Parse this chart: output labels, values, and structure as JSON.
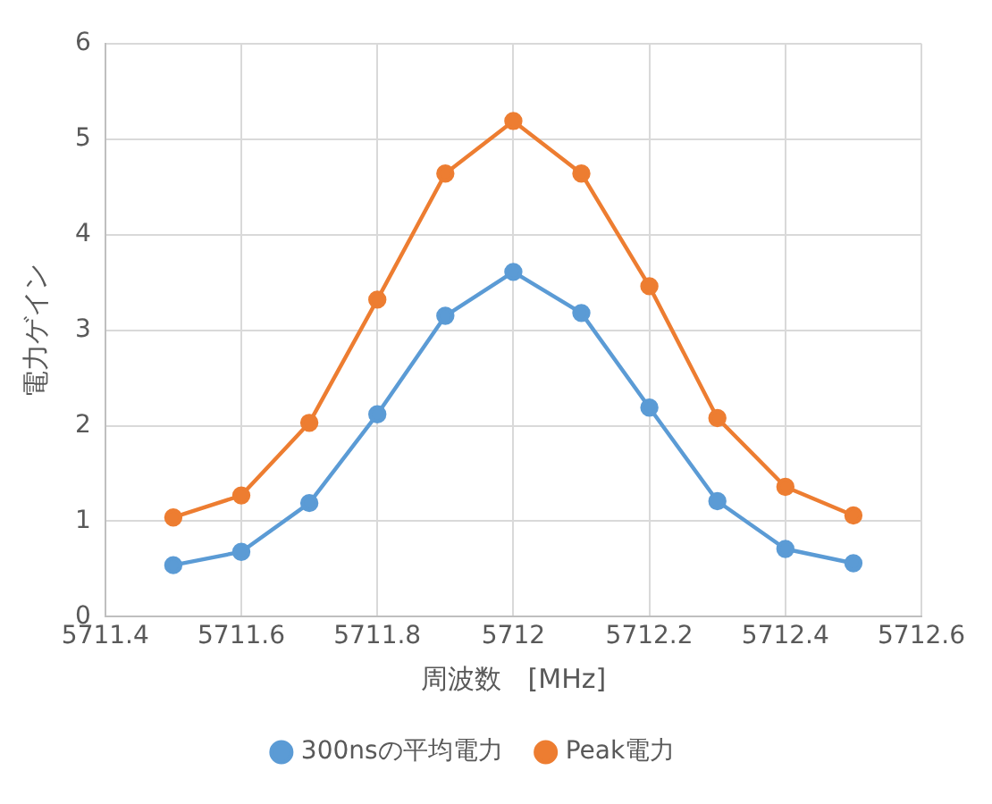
{
  "chart_data": {
    "type": "line",
    "xlabel": "周波数　[MHz]",
    "ylabel": "電力ゲイン",
    "x": [
      5711.5,
      5711.6,
      5711.7,
      5711.8,
      5711.9,
      5712,
      5712.1,
      5712.2,
      5712.3,
      5712.4,
      5712.5
    ],
    "series": [
      {
        "name": "300nsの平均電力",
        "color": "#5b9bd5",
        "values": [
          0.54,
          0.68,
          1.19,
          2.12,
          3.15,
          3.61,
          3.18,
          2.19,
          1.21,
          0.71,
          0.56
        ]
      },
      {
        "name": "Peak電力",
        "color": "#ed7d31",
        "values": [
          1.04,
          1.27,
          2.03,
          3.32,
          4.64,
          5.19,
          4.64,
          3.46,
          2.08,
          1.36,
          1.06
        ]
      }
    ],
    "xlim": [
      5711.4,
      5712.6
    ],
    "xticks": [
      5711.4,
      5711.6,
      5711.8,
      5712,
      5712.2,
      5712.4,
      5712.6
    ],
    "ylim": [
      0,
      6
    ],
    "yticks": [
      0,
      1,
      2,
      3,
      4,
      5,
      6
    ],
    "grid": true,
    "legend": "bottom",
    "marker": "circle",
    "line_style": "solid"
  }
}
